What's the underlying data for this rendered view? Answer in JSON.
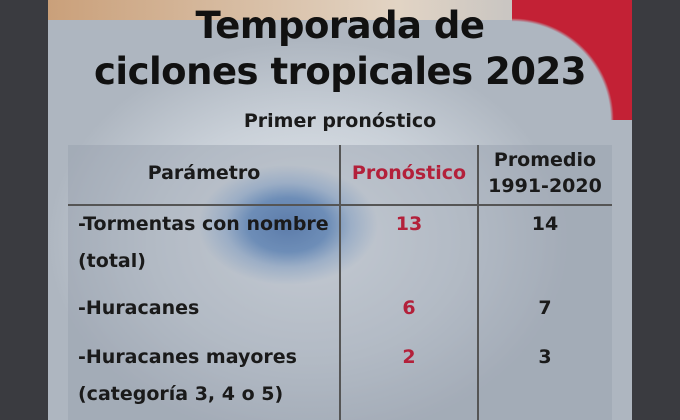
{
  "header": {
    "title_lines": [
      "Temporada de",
      "ciclones tropicales 2023"
    ],
    "subtitle": "Primer pronóstico"
  },
  "table": {
    "columns": [
      [
        "Parámetro"
      ],
      [
        "Pronóstico"
      ],
      [
        "Promedio",
        "1991-2020"
      ]
    ],
    "rows": [
      {
        "label_lines": [
          "-Tormentas con nombre",
          "(total)"
        ],
        "forecast": 13,
        "average": 14
      },
      {
        "label_lines": [
          "-Huracanes"
        ],
        "forecast": 6,
        "average": 7
      },
      {
        "label_lines": [
          "-Huracanes mayores",
          "(categoría 3, 4 o 5)"
        ],
        "forecast": 2,
        "average": 3
      }
    ]
  }
}
